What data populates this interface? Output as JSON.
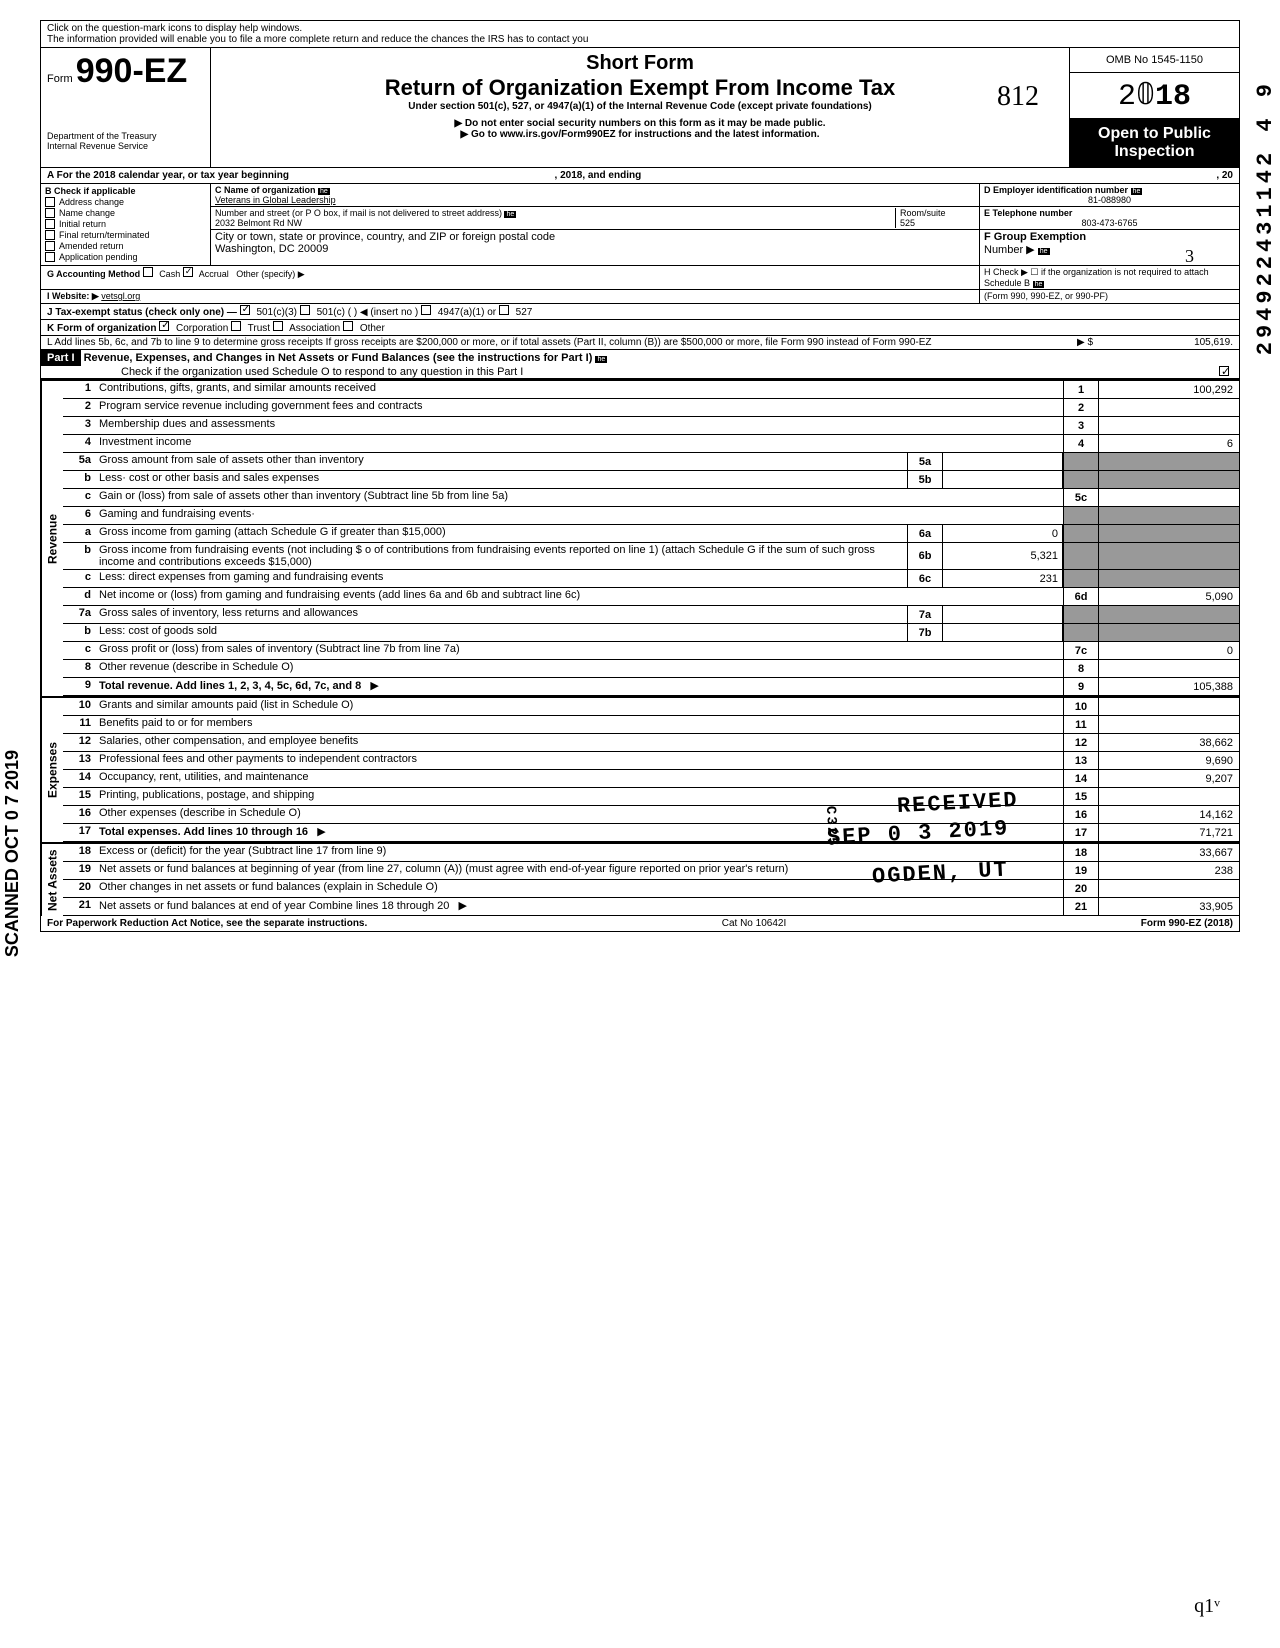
{
  "topNote1": "Click on the question-mark icons to display help windows.",
  "topNote2": "The information provided will enable you to file a more complete return and reduce the chances the IRS has to contact you",
  "header": {
    "formPrefix": "Form",
    "formNumber": "990-EZ",
    "dept": "Department of the Treasury",
    "irs": "Internal Revenue Service",
    "shortForm": "Short Form",
    "title": "Return of Organization Exempt From Income Tax",
    "under": "Under section 501(c), 527, or 4947(a)(1) of the Internal Revenue Code (except private foundations)",
    "doNot": "▶ Do not enter social security numbers on this form as it may be made public.",
    "goto": "▶ Go to www.irs.gov/Form990EZ for instructions and the latest information.",
    "omb": "OMB No 1545-1150",
    "year": "2018",
    "openPublic1": "Open to Public",
    "openPublic2": "Inspection"
  },
  "rowA": {
    "text": "A  For the 2018 calendar year, or tax year beginning",
    "ending": ", 2018, and ending",
    "tail": ", 20"
  },
  "sectionB": {
    "title": "B  Check if applicable",
    "checks": [
      "Address change",
      "Name change",
      "Initial return",
      "Final return/terminated",
      "Amended return",
      "Application pending"
    ]
  },
  "sectionC": {
    "nameLabel": "C  Name of organization",
    "name": "Veterans in Global Leadership",
    "streetLabel": "Number and street (or P O  box, if mail is not delivered to street address)",
    "street": "2032 Belmont Rd NW",
    "roomLabel": "Room/suite",
    "room": "525",
    "cityLabel": "City or town, state or province, country, and ZIP or foreign postal code",
    "city": "Washington, DC  20009"
  },
  "sectionD": {
    "label": "D Employer identification number",
    "value": "81-088980"
  },
  "sectionE": {
    "label": "E Telephone number",
    "value": "803-473-6765"
  },
  "sectionF": {
    "label": "F Group Exemption",
    "label2": "Number ▶"
  },
  "rowG": {
    "label": "G  Accounting Method",
    "cash": "Cash",
    "accrual": "Accrual",
    "other": "Other (specify) ▶"
  },
  "rowH": {
    "text": "H Check ▶ ☐ if the organization is not required to attach Schedule B",
    "text2": "(Form 990, 990-EZ, or 990-PF)"
  },
  "rowI": {
    "label": "I  Website: ▶",
    "value": "vetsgl.org"
  },
  "rowJ": {
    "label": "J  Tax-exempt status (check only one) —",
    "opts": [
      "501(c)(3)",
      "501(c) (",
      ")  ◀ (insert no )",
      "4947(a)(1) or",
      "527"
    ]
  },
  "rowK": {
    "label": "K  Form of organization",
    "opts": [
      "Corporation",
      "Trust",
      "Association",
      "Other"
    ]
  },
  "rowL": {
    "text": "L  Add lines 5b, 6c, and 7b to line 9 to determine gross receipts  If gross receipts are $200,000 or more, or if total assets (Part II, column (B)) are $500,000 or more, file Form 990 instead of Form 990-EZ",
    "arrow": "▶  $",
    "value": "105,619."
  },
  "part1": {
    "label": "Part I",
    "title": "Revenue, Expenses, and Changes in Net Assets or Fund Balances (see the instructions for Part I)",
    "check": "Check if the organization used Schedule O to respond to any question in this Part I"
  },
  "sections": {
    "revenue": "Revenue",
    "expenses": "Expenses",
    "netassets": "Net Assets"
  },
  "lines": [
    {
      "n": "1",
      "desc": "Contributions, gifts, grants, and similar amounts received",
      "end": "1",
      "val": "100,292"
    },
    {
      "n": "2",
      "desc": "Program service revenue including government fees and contracts",
      "end": "2",
      "val": ""
    },
    {
      "n": "3",
      "desc": "Membership dues and assessments",
      "end": "3",
      "val": ""
    },
    {
      "n": "4",
      "desc": "Investment income",
      "end": "4",
      "val": "6"
    },
    {
      "n": "5a",
      "desc": "Gross amount from sale of assets other than inventory",
      "mid": "5a",
      "midval": "",
      "shaded": true
    },
    {
      "n": "b",
      "desc": "Less· cost or other basis and sales expenses",
      "mid": "5b",
      "midval": "",
      "shaded": true
    },
    {
      "n": "c",
      "desc": "Gain or (loss) from sale of assets other than inventory (Subtract line 5b from line 5a)",
      "end": "5c",
      "val": ""
    },
    {
      "n": "6",
      "desc": "Gaming and fundraising events·",
      "shaded": true,
      "noend": true
    },
    {
      "n": "a",
      "desc": "Gross income from gaming (attach Schedule G if greater than $15,000)",
      "mid": "6a",
      "midval": "0",
      "shaded": true
    },
    {
      "n": "b",
      "desc": "Gross income from fundraising events (not including  $                          o of contributions from fundraising events reported on line 1) (attach Schedule G if the sum of such gross income and contributions exceeds $15,000)",
      "mid": "6b",
      "midval": "5,321",
      "shaded": true
    },
    {
      "n": "c",
      "desc": "Less: direct expenses from gaming and fundraising events",
      "mid": "6c",
      "midval": "231",
      "shaded": true
    },
    {
      "n": "d",
      "desc": "Net income or (loss) from gaming and fundraising events (add lines 6a and 6b and subtract line 6c)",
      "end": "6d",
      "val": "5,090"
    },
    {
      "n": "7a",
      "desc": "Gross sales of inventory, less returns and allowances",
      "mid": "7a",
      "midval": "",
      "shaded": true
    },
    {
      "n": "b",
      "desc": "Less: cost of goods sold",
      "mid": "7b",
      "midval": "",
      "shaded": true
    },
    {
      "n": "c",
      "desc": "Gross profit or (loss) from sales of inventory (Subtract line 7b from line 7a)",
      "end": "7c",
      "val": "0"
    },
    {
      "n": "8",
      "desc": "Other revenue (describe in Schedule O)",
      "end": "8",
      "val": ""
    },
    {
      "n": "9",
      "desc": "Total revenue. Add lines 1, 2, 3, 4, 5c, 6d, 7c, and 8",
      "end": "9",
      "val": "105,388",
      "bold": true,
      "arrow": true
    }
  ],
  "expenseLines": [
    {
      "n": "10",
      "desc": "Grants and similar amounts paid (list in Schedule O)",
      "end": "10",
      "val": ""
    },
    {
      "n": "11",
      "desc": "Benefits paid to or for members",
      "end": "11",
      "val": ""
    },
    {
      "n": "12",
      "desc": "Salaries, other compensation, and employee benefits",
      "end": "12",
      "val": "38,662"
    },
    {
      "n": "13",
      "desc": "Professional fees and other payments to independent contractors",
      "end": "13",
      "val": "9,690"
    },
    {
      "n": "14",
      "desc": "Occupancy, rent, utilities, and maintenance",
      "end": "14",
      "val": "9,207"
    },
    {
      "n": "15",
      "desc": "Printing, publications, postage, and shipping",
      "end": "15",
      "val": ""
    },
    {
      "n": "16",
      "desc": "Other expenses (describe in Schedule O)",
      "end": "16",
      "val": "14,162"
    },
    {
      "n": "17",
      "desc": "Total expenses. Add lines 10 through 16",
      "end": "17",
      "val": "71,721",
      "bold": true,
      "arrow": true
    }
  ],
  "netLines": [
    {
      "n": "18",
      "desc": "Excess or (deficit) for the year (Subtract line 17 from line 9)",
      "end": "18",
      "val": "33,667"
    },
    {
      "n": "19",
      "desc": "Net assets or fund balances at beginning of year (from line 27, column (A)) (must agree with end-of-year figure reported on prior year's return)",
      "end": "19",
      "val": "238"
    },
    {
      "n": "20",
      "desc": "Other changes in net assets or fund balances (explain in Schedule O)",
      "end": "20",
      "val": ""
    },
    {
      "n": "21",
      "desc": "Net assets or fund balances at end of year  Combine lines 18 through 20",
      "end": "21",
      "val": "33,905",
      "arrow": true
    }
  ],
  "footer": {
    "left": "For Paperwork Reduction Act Notice, see the separate instructions.",
    "mid": "Cat No  10642I",
    "right": "Form 990-EZ (2018)"
  },
  "stamps": {
    "received": "RECEIVED",
    "date": "SEP 0 3 2019",
    "ogden": "OGDEN, UT",
    "scanned": "SCANNED OCT 0 7 2019",
    "sideNum": "294922431142 4  9",
    "hand812": "812",
    "hand3": "3",
    "handQ": "q1ᵛ",
    "c325": "C325"
  }
}
